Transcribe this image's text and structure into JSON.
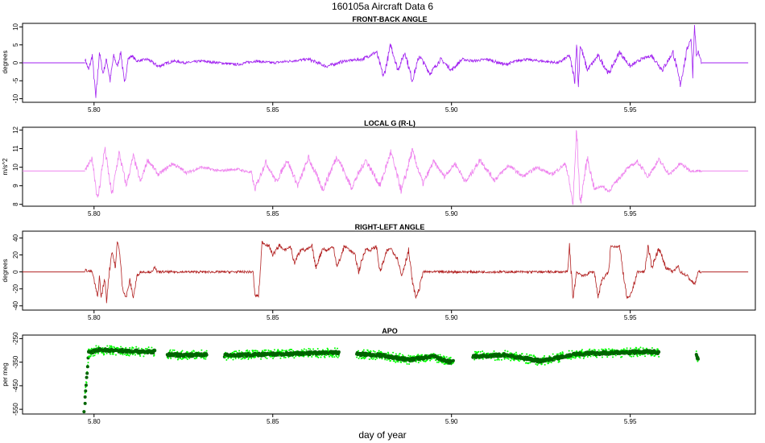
{
  "figure": {
    "title": "160105a   Aircraft Data 6",
    "xlabel": "day of year"
  },
  "chart_data": [
    {
      "type": "line",
      "title": "FRONT-BACK ANGLE",
      "ylabel": "degrees",
      "color": "#a020f0",
      "xlim": [
        5.78,
        5.985
      ],
      "ylim": [
        -11,
        11
      ],
      "xticks": [
        "5.80",
        "5.85",
        "5.90",
        "5.95"
      ],
      "xtick_values": [
        5.8,
        5.85,
        5.9,
        5.95
      ],
      "yticks": [
        10,
        5,
        0,
        -5,
        -10
      ],
      "baseline": 0,
      "data_span": [
        5.7975,
        5.97
      ],
      "series": [
        {
          "x": [
            5.7975,
            5.7985,
            5.7995,
            5.8005,
            5.8015,
            5.8025,
            5.8035,
            5.8045,
            5.8055,
            5.8065,
            5.8075,
            5.8085,
            5.8095,
            5.8105,
            5.812,
            5.815,
            5.818,
            5.822,
            5.826,
            5.83,
            5.835,
            5.84,
            5.845,
            5.85,
            5.855,
            5.86,
            5.865,
            5.87,
            5.875,
            5.879,
            5.881,
            5.883,
            5.885,
            5.887,
            5.889,
            5.891,
            5.894,
            5.897,
            5.9,
            5.903,
            5.906,
            5.91,
            5.915,
            5.92,
            5.925,
            5.93,
            5.933,
            5.9345,
            5.935,
            5.9355,
            5.936,
            5.938,
            5.941,
            5.944,
            5.947,
            5.95,
            5.953,
            5.956,
            5.959,
            5.962,
            5.964,
            5.966,
            5.967,
            5.9675,
            5.968,
            5.9685,
            5.969,
            5.97
          ],
          "y": [
            1,
            -2,
            2,
            -10,
            3,
            -3,
            1,
            -5,
            2,
            -1,
            3,
            -6,
            1,
            2,
            0.5,
            1,
            -1,
            0.5,
            0,
            0.5,
            0,
            -0.5,
            0.5,
            0,
            0.5,
            1,
            -1,
            0.5,
            1,
            3,
            -4,
            5,
            -2,
            3,
            -5,
            2,
            -3,
            1,
            -2,
            1,
            0.5,
            1,
            -0.5,
            1,
            0.5,
            0,
            2,
            -5,
            6,
            -7,
            5,
            -2,
            2,
            -3,
            3,
            -1,
            1,
            2,
            -2,
            3,
            -6,
            4,
            7,
            -3,
            11,
            2,
            3,
            0
          ]
        }
      ]
    },
    {
      "type": "line",
      "title": "LOCAL G (R-L)",
      "ylabel": "m/s^2",
      "color": "#ee82ee",
      "xlim": [
        5.78,
        5.985
      ],
      "ylim": [
        7.9,
        12.15
      ],
      "xticks": [
        "5.80",
        "5.85",
        "5.90",
        "5.95"
      ],
      "xtick_values": [
        5.8,
        5.85,
        5.9,
        5.95
      ],
      "yticks": [
        12,
        11,
        10,
        9,
        8
      ],
      "baseline": 9.8,
      "data_span": [
        5.7975,
        5.97
      ],
      "series": [
        {
          "x": [
            5.7975,
            5.7995,
            5.801,
            5.803,
            5.805,
            5.807,
            5.809,
            5.811,
            5.813,
            5.815,
            5.818,
            5.822,
            5.826,
            5.83,
            5.835,
            5.84,
            5.844,
            5.845,
            5.848,
            5.851,
            5.854,
            5.857,
            5.86,
            5.864,
            5.868,
            5.872,
            5.876,
            5.88,
            5.883,
            5.886,
            5.889,
            5.892,
            5.895,
            5.898,
            5.901,
            5.904,
            5.908,
            5.912,
            5.916,
            5.92,
            5.924,
            5.928,
            5.932,
            5.934,
            5.935,
            5.936,
            5.938,
            5.94,
            5.942,
            5.944,
            5.946,
            5.949,
            5.952,
            5.955,
            5.958,
            5.961,
            5.964,
            5.967,
            5.97
          ],
          "y": [
            9.8,
            10.5,
            8.2,
            11,
            8.5,
            10.8,
            9,
            10.6,
            9.2,
            10.4,
            9.6,
            10.2,
            9.7,
            10.0,
            9.8,
            9.9,
            9.7,
            8.8,
            10.3,
            9.2,
            10.4,
            9.0,
            10.5,
            8.8,
            10.6,
            8.9,
            10.4,
            9.0,
            10.8,
            8.7,
            10.9,
            9.1,
            10.3,
            9.5,
            10.2,
            9.2,
            10.4,
            9.3,
            10.1,
            9.5,
            10.0,
            9.6,
            10.2,
            8.0,
            12.1,
            8.0,
            10.5,
            8.8,
            9.0,
            8.7,
            9.2,
            9.9,
            10.3,
            9.5,
            10.4,
            9.6,
            10.2,
            9.8,
            9.8
          ]
        }
      ]
    },
    {
      "type": "line",
      "title": "RIGHT-LEFT ANGLE",
      "ylabel": "degrees",
      "color": "#b22222",
      "xlim": [
        5.78,
        5.985
      ],
      "ylim": [
        -45,
        48
      ],
      "xticks": [
        "5.80",
        "5.85",
        "5.90",
        "5.95"
      ],
      "xtick_values": [
        5.8,
        5.85,
        5.9,
        5.95
      ],
      "yticks": [
        40,
        20,
        0,
        -20,
        -40
      ],
      "baseline": 0,
      "data_span": [
        5.7975,
        5.97
      ],
      "series": [
        {
          "x": [
            5.7975,
            5.7995,
            5.8,
            5.801,
            5.8015,
            5.802,
            5.803,
            5.8035,
            5.804,
            5.805,
            5.806,
            5.8065,
            5.807,
            5.808,
            5.809,
            5.81,
            5.811,
            5.812,
            5.813,
            5.8165,
            5.817,
            5.8175,
            5.82,
            5.83,
            5.84,
            5.8445,
            5.845,
            5.846,
            5.8465,
            5.847,
            5.849,
            5.85,
            5.852,
            5.853,
            5.855,
            5.856,
            5.858,
            5.859,
            5.861,
            5.862,
            5.864,
            5.865,
            5.867,
            5.868,
            5.87,
            5.871,
            5.873,
            5.874,
            5.876,
            5.877,
            5.879,
            5.88,
            5.882,
            5.883,
            5.885,
            5.886,
            5.888,
            5.889,
            5.89,
            5.891,
            5.892,
            5.9,
            5.92,
            5.9325,
            5.933,
            5.934,
            5.935,
            5.937,
            5.939,
            5.94,
            5.941,
            5.942,
            5.944,
            5.9445,
            5.945,
            5.947,
            5.948,
            5.949,
            5.95,
            5.952,
            5.954,
            5.955,
            5.956,
            5.958,
            5.96,
            5.962,
            5.9635,
            5.964,
            5.966,
            5.968,
            5.969,
            5.97
          ],
          "y": [
            2,
            0,
            -10,
            -30,
            -5,
            -30,
            -8,
            -35,
            -10,
            25,
            5,
            35,
            30,
            -20,
            -30,
            -10,
            -30,
            -5,
            0,
            0,
            8,
            0,
            0,
            0,
            0,
            0,
            -28,
            -28,
            0,
            35,
            30,
            20,
            32,
            25,
            30,
            10,
            28,
            25,
            30,
            5,
            28,
            25,
            30,
            5,
            30,
            28,
            20,
            0,
            28,
            25,
            30,
            0,
            25,
            28,
            15,
            -5,
            25,
            -10,
            -30,
            -20,
            0,
            0,
            0,
            0,
            30,
            -30,
            0,
            -5,
            0,
            0,
            -30,
            -10,
            0,
            30,
            30,
            30,
            0,
            -30,
            -30,
            0,
            0,
            30,
            5,
            28,
            5,
            0,
            7,
            0,
            -5,
            -15,
            0,
            0
          ]
        }
      ]
    },
    {
      "type": "scatter",
      "title": "APO",
      "ylabel": "per meg",
      "colors": [
        "#006400",
        "#00ff00"
      ],
      "xlim": [
        5.78,
        5.985
      ],
      "ylim": [
        -570,
        -235
      ],
      "xticks": [
        "5.80",
        "5.85",
        "5.90",
        "5.95"
      ],
      "xtick_values": [
        5.8,
        5.85,
        5.9,
        5.95
      ],
      "yticks": [
        -250,
        -350,
        -450,
        -550
      ],
      "ytick_labels": [
        "-250",
        "-350",
        "-450",
        "-550"
      ],
      "segments": [
        {
          "x": [
            5.7975,
            5.7985
          ],
          "y": [
            -500,
            -310
          ]
        },
        {
          "x": [
            5.7985,
            5.801,
            5.805,
            5.81,
            5.815,
            5.817
          ],
          "y": [
            -310,
            -298,
            -300,
            -303,
            -306,
            -305
          ]
        },
        {
          "x": [
            5.8205,
            5.825,
            5.8315
          ],
          "y": [
            -318,
            -320,
            -318
          ]
        },
        {
          "x": [
            5.8365,
            5.845,
            5.855,
            5.865,
            5.8685
          ],
          "y": [
            -322,
            -318,
            -315,
            -310,
            -310
          ]
        },
        {
          "x": [
            5.8735,
            5.88,
            5.888,
            5.895,
            5.8995,
            5.9005
          ],
          "y": [
            -315,
            -320,
            -340,
            -325,
            -350,
            -345
          ]
        },
        {
          "x": [
            5.906,
            5.915,
            5.925,
            5.935,
            5.945,
            5.955,
            5.958
          ],
          "y": [
            -325,
            -320,
            -345,
            -315,
            -310,
            -306,
            -308
          ]
        },
        {
          "x": [
            5.9685,
            5.969
          ],
          "y": [
            -322,
            -335
          ]
        }
      ],
      "isolated_points": {
        "x": [
          5.7972,
          5.7975
        ],
        "y": [
          -560,
          -525
        ]
      }
    }
  ]
}
